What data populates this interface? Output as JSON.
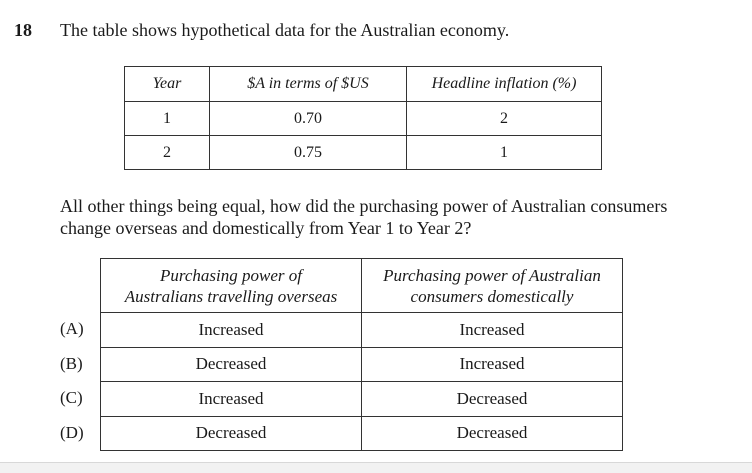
{
  "question": {
    "number": "18",
    "stem": "The table shows hypothetical data for the Australian economy.",
    "prompt": "All other things being equal, how did the purchasing power of Australian consumers change overseas and domestically from Year 1 to Year 2?"
  },
  "data_table": {
    "headers": [
      "Year",
      "$A in terms of $US",
      "Headline inflation (%)"
    ],
    "rows": [
      [
        "1",
        "0.70",
        "2"
      ],
      [
        "2",
        "0.75",
        "1"
      ]
    ]
  },
  "answer_table": {
    "headers": [
      [
        "Purchasing power of",
        "Australians travelling overseas"
      ],
      [
        "Purchasing power of Australian",
        "consumers domestically"
      ]
    ],
    "options": [
      {
        "label": "(A)",
        "overseas": "Increased",
        "domestic": "Increased"
      },
      {
        "label": "(B)",
        "overseas": "Decreased",
        "domestic": "Increased"
      },
      {
        "label": "(C)",
        "overseas": "Increased",
        "domestic": "Decreased"
      },
      {
        "label": "(D)",
        "overseas": "Decreased",
        "domestic": "Decreased"
      }
    ]
  }
}
